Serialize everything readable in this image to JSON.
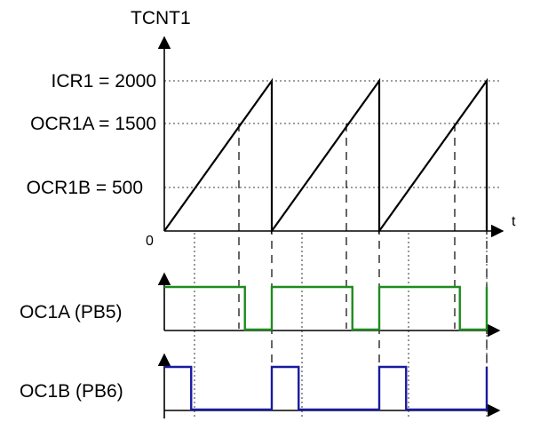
{
  "counter": {
    "title": "TCNT1",
    "t_label": "t",
    "origin_label": "0",
    "levels": [
      {
        "label": "ICR1 = 2000",
        "value": 2000
      },
      {
        "label": "OCR1A = 1500",
        "value": 1500
      },
      {
        "label": "OCR1B = 500",
        "value": 500
      }
    ],
    "periods": 3
  },
  "signals": [
    {
      "label": "OC1A (PB5)",
      "color": "#1e8c1e",
      "high_while_below": 1500
    },
    {
      "label": "OC1B (PB6)",
      "color": "#1a1aa0",
      "high_while_below": 500
    }
  ]
}
